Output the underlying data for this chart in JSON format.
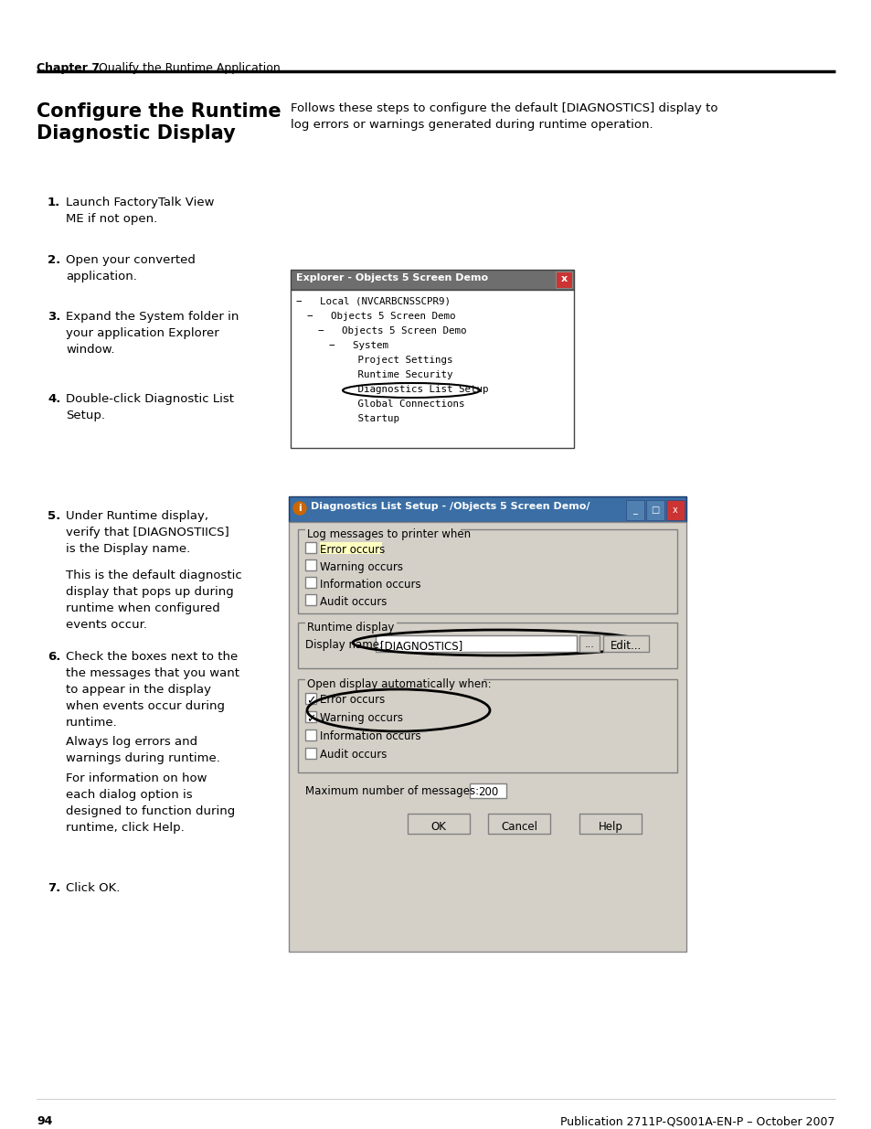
{
  "page_bg": "#ffffff",
  "chapter_label": "Chapter 7",
  "chapter_title": "Qualify the Runtime Application",
  "section_title": "Configure the Runtime\nDiagnostic Display",
  "section_intro": "Follows these steps to configure the default [DIAGNOSTICS] display to\nlog errors or warnings generated during runtime operation.",
  "footer_page": "94",
  "footer_pub": "Publication 2711P-QS001A-EN-P – October 2007",
  "explorer_title": "Explorer - Objects 5 Screen Demo",
  "dialog_title": "Diagnostics List Setup - /Objects 5 Screen Demo/",
  "tree_items": [
    [
      0,
      "−   Local (NVCARBCNSSCPR9)"
    ],
    [
      1,
      "−   Objects 5 Screen Demo"
    ],
    [
      2,
      "−   Objects 5 Screen Demo"
    ],
    [
      3,
      "−   System"
    ],
    [
      4,
      "   Project Settings"
    ],
    [
      4,
      "   Runtime Security"
    ],
    [
      4,
      "   Diagnostics List Setup"
    ],
    [
      4,
      "   Global Connections"
    ],
    [
      4,
      "   Startup"
    ]
  ],
  "log_checkboxes": [
    "Error occurs",
    "Warning occurs",
    "Information occurs",
    "Audit occurs"
  ],
  "log_checked": [
    false,
    false,
    false,
    false
  ],
  "auto_checkboxes": [
    "Error occurs",
    "Warning occurs",
    "Information occurs",
    "Audit occurs"
  ],
  "auto_checked": [
    true,
    true,
    false,
    false
  ],
  "display_name": "[DIAGNOSTICS]",
  "max_messages": "200"
}
